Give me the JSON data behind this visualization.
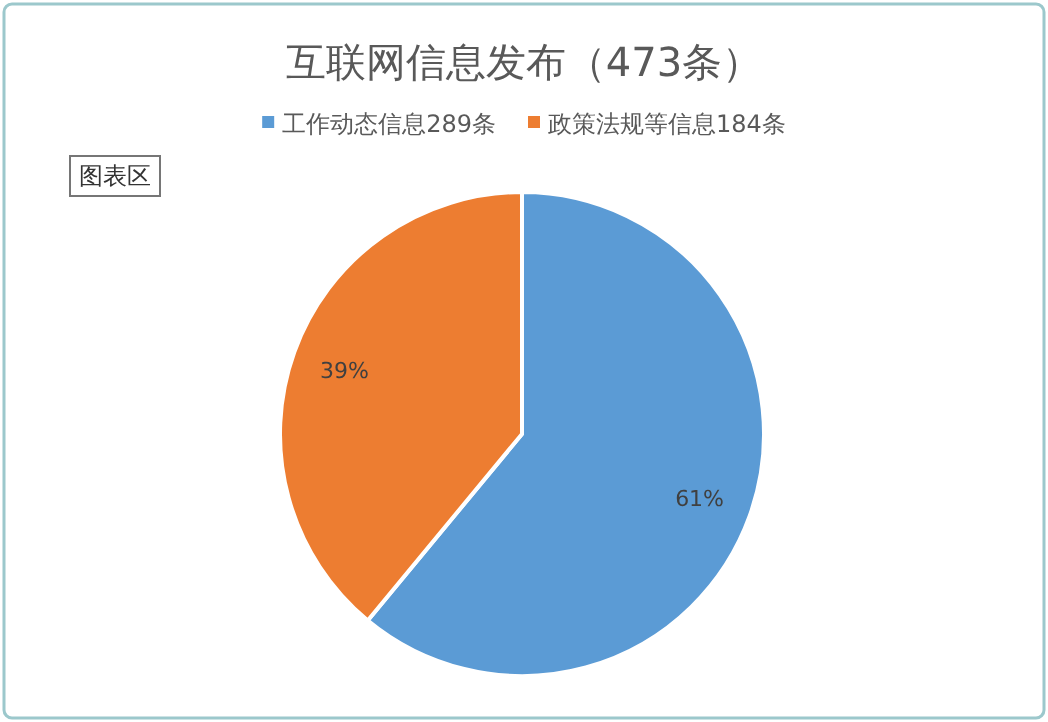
{
  "chart_data": {
    "type": "pie",
    "title": "互联网信息发布（473条）",
    "categories": [
      "工作动态信息289条",
      "政策法规等信息184条"
    ],
    "values": [
      61,
      39
    ],
    "colors": [
      "#5b9bd5",
      "#ed7d31"
    ],
    "value_labels": [
      "61%",
      "39%"
    ],
    "legend": "top",
    "annotations": [
      "图表区"
    ]
  }
}
